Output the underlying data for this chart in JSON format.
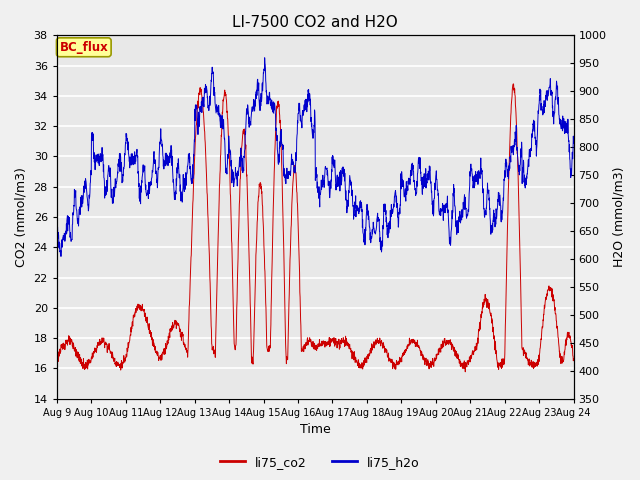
{
  "title": "LI-7500 CO2 and H2O",
  "xlabel": "Time",
  "ylabel_left": "CO2 (mmol/m3)",
  "ylabel_right": "H2O (mmol/m3)",
  "ylim_left": [
    14,
    38
  ],
  "ylim_right": [
    350,
    1000
  ],
  "yticks_left": [
    14,
    16,
    18,
    20,
    22,
    24,
    26,
    28,
    30,
    32,
    34,
    36,
    38
  ],
  "yticks_right": [
    350,
    400,
    450,
    500,
    550,
    600,
    650,
    700,
    750,
    800,
    850,
    900,
    950,
    1000
  ],
  "xtick_labels": [
    "Aug 9",
    "Aug 10",
    "Aug 11",
    "Aug 12",
    "Aug 13",
    "Aug 14",
    "Aug 15",
    "Aug 16",
    "Aug 17",
    "Aug 18",
    "Aug 19",
    "Aug 20",
    "Aug 21",
    "Aug 22",
    "Aug 23",
    "Aug 24"
  ],
  "color_co2": "#cc0000",
  "color_h2o": "#0000cc",
  "legend_entries": [
    "li75_co2",
    "li75_h2o"
  ],
  "annotation_text": "BC_flux",
  "annotation_color": "#cc0000",
  "annotation_bg": "#ffff99",
  "annotation_border": "#999900",
  "plot_bg": "#e8e8e8",
  "fig_bg": "#f0f0f0",
  "grid_color": "#ffffff",
  "title_fontsize": 11,
  "axis_fontsize": 9,
  "tick_fontsize": 8
}
